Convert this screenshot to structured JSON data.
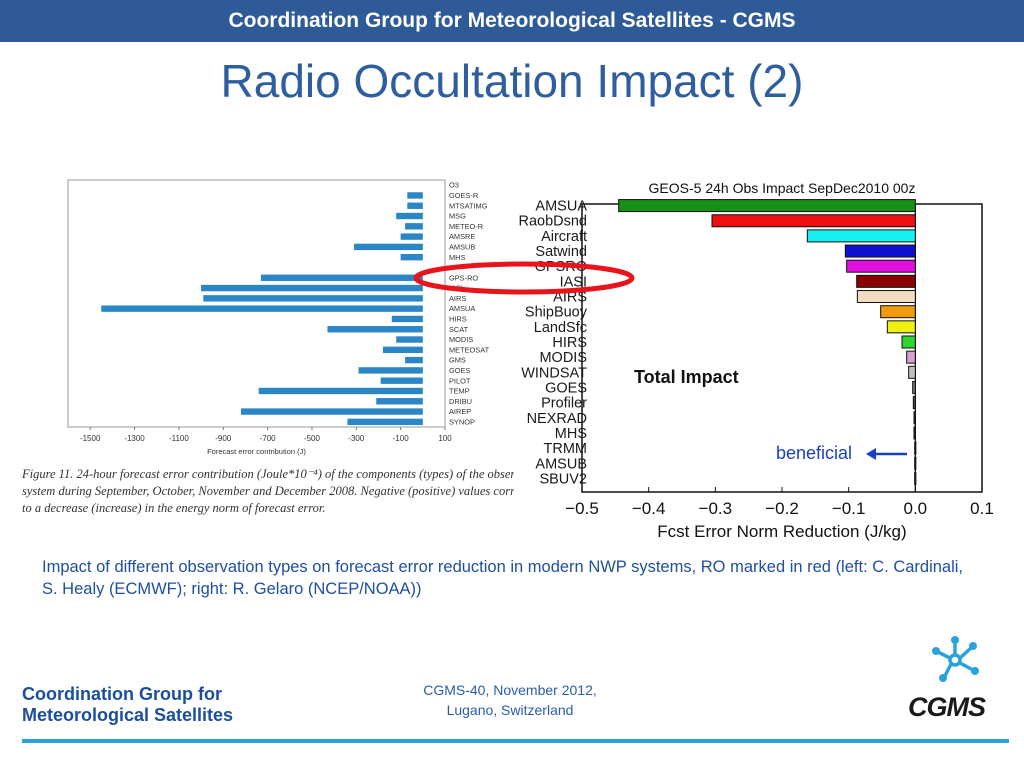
{
  "header": {
    "text": "Coordination Group for Meteorological Satellites - CGMS"
  },
  "slide_title": "Radio Occultation Impact (2)",
  "description": "Impact of different observation types on forecast error reduction in modern NWP systems, RO marked in red (left: C. Cardinali, S. Healy (ECMWF); right: R. Gelaro (NCEP/NOAA))",
  "left_caption": {
    "line1": "Figure 11. 24-hour forecast error contribution (Joule*10⁻⁴) of the components (types) of the observin",
    "line2": "system during September, October, November and December 2008. Negative (positive) values correspor",
    "line3": "to a decrease (increase) in the energy norm of forecast error."
  },
  "footer": {
    "org_line1": "Coordination Group for",
    "org_line2": "Meteorological Satellites",
    "conf_line1": "CGMS-40, November 2012,",
    "conf_line2": "Lugano, Switzerland",
    "logo_text": "CGMS"
  },
  "colors": {
    "header_bg": "#2e5b98",
    "title": "#2e5e9e",
    "left_bars": "#2a86c4",
    "ro_marker": "#e8141c",
    "footer_line": "#2aa2dd"
  },
  "chart_data": [
    {
      "type": "bar",
      "orientation": "horizontal",
      "categories": [
        "O3",
        "GOES-R",
        "MTSATIMG",
        "MSG",
        "METEO-R",
        "AMSRE",
        "AMSUB",
        "MHS",
        "",
        "GPS-RO",
        "IASI",
        "AIRS",
        "AMSUA",
        "HIRS",
        "SCAT",
        "MODIS",
        "METEOSAT",
        "GMS",
        "GOES",
        "PILOT",
        "TEMP",
        "DRIBU",
        "AIREP",
        "SYNOP"
      ],
      "values": [
        0,
        -70,
        -70,
        -120,
        -80,
        -100,
        -310,
        -100,
        0,
        -730,
        -1000,
        -990,
        -1450,
        -140,
        -430,
        -120,
        -180,
        -80,
        -290,
        -190,
        -740,
        -210,
        -820,
        -340
      ],
      "xlabel": "Forecast error contribution (J)",
      "xticks": [
        "-1500",
        "-1300",
        "-1100",
        "-900",
        "-700",
        "-500",
        "-300",
        "-100",
        "100"
      ],
      "xlim": [
        -1600,
        100
      ],
      "grid": false
    },
    {
      "type": "bar",
      "orientation": "horizontal",
      "title": "GEOS-5 24h Obs Impact SepDec2010 00z",
      "categories": [
        "AMSUA",
        "RaobDsnd",
        "Aircraft",
        "Satwind",
        "GPSRO",
        "IASI",
        "AIRS",
        "ShipBuoy",
        "LandSfc",
        "HIRS",
        "MODIS",
        "WINDSAT",
        "GOES",
        "Profiler",
        "NEXRAD",
        "MHS",
        "TRMM",
        "AMSUB",
        "SBUV2"
      ],
      "values": [
        -0.445,
        -0.305,
        -0.162,
        -0.105,
        -0.103,
        -0.088,
        -0.087,
        -0.052,
        -0.042,
        -0.02,
        -0.013,
        -0.01,
        -0.004,
        -0.003,
        -0.002,
        -0.002,
        -0.001,
        -0.001,
        -0.001
      ],
      "colors": [
        "#169116",
        "#ee1010",
        "#18f0f0",
        "#1010d0",
        "#e010e0",
        "#8a0000",
        "#f2dcc0",
        "#f29b0c",
        "#f0f010",
        "#2ed62e",
        "#d8a0d0",
        "#c0c0c0",
        "#787878",
        "#505050",
        "#404040",
        "#303030",
        "#303030",
        "#303030",
        "#303030"
      ],
      "xlabel": "Fcst Error Norm Reduction (J/kg)",
      "xticks": [
        "−0.5",
        "−0.4",
        "−0.3",
        "−0.2",
        "−0.1",
        "0.0",
        "0.1"
      ],
      "xlim": [
        -0.5,
        0.1
      ],
      "annotations": {
        "total_impact": "Total Impact",
        "beneficial": "beneficial"
      },
      "grid": false
    }
  ]
}
